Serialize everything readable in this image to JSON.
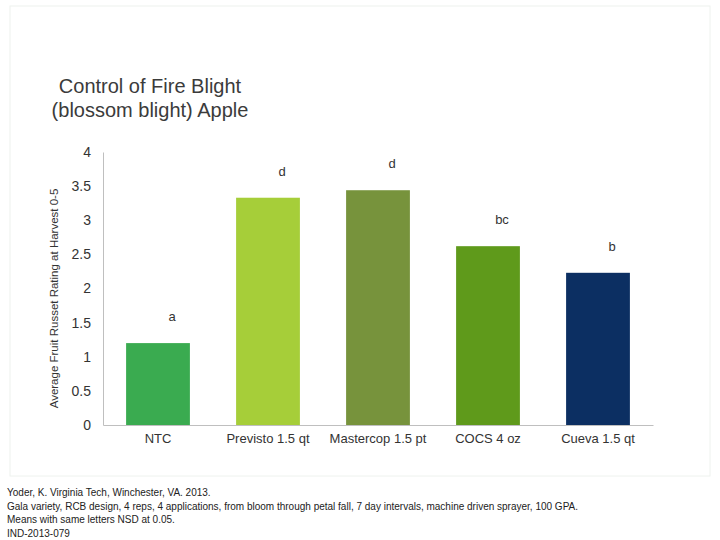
{
  "chart_data": {
    "type": "bar",
    "title": [
      "Control of Fire Blight",
      "(blossom blight) Apple"
    ],
    "y_label": "Average Fruit Russet Rating at Harvest 0-5",
    "categories": [
      "NTC",
      "Previsto 1.5 qt",
      "Mastercop 1.5 pt",
      "COCS 4 oz",
      "Cueva  1.5 qt"
    ],
    "values": [
      1.2,
      3.33,
      3.44,
      2.62,
      2.23
    ],
    "colors": [
      "#3aab50",
      "#a6ce39",
      "#77933c",
      "#5f9a1b",
      "#0c2f62"
    ],
    "annotations": [
      "a",
      "d",
      "d",
      "bc",
      "b"
    ],
    "ylim": [
      0,
      4
    ],
    "yticks": [
      0,
      0.5,
      1,
      1.5,
      2,
      2.5,
      3,
      3.5,
      4
    ],
    "grid": false,
    "footnote": [
      "Yoder, K. Virginia Tech, Winchester, VA. 2013.",
      "Gala variety,  RCB design, 4 reps, 4 applications, from bloom through petal fall, 7 day intervals, machine driven sprayer, 100 GPA.",
      "Means with same letters NSD at 0.05.",
      "IND-2013-079"
    ]
  }
}
